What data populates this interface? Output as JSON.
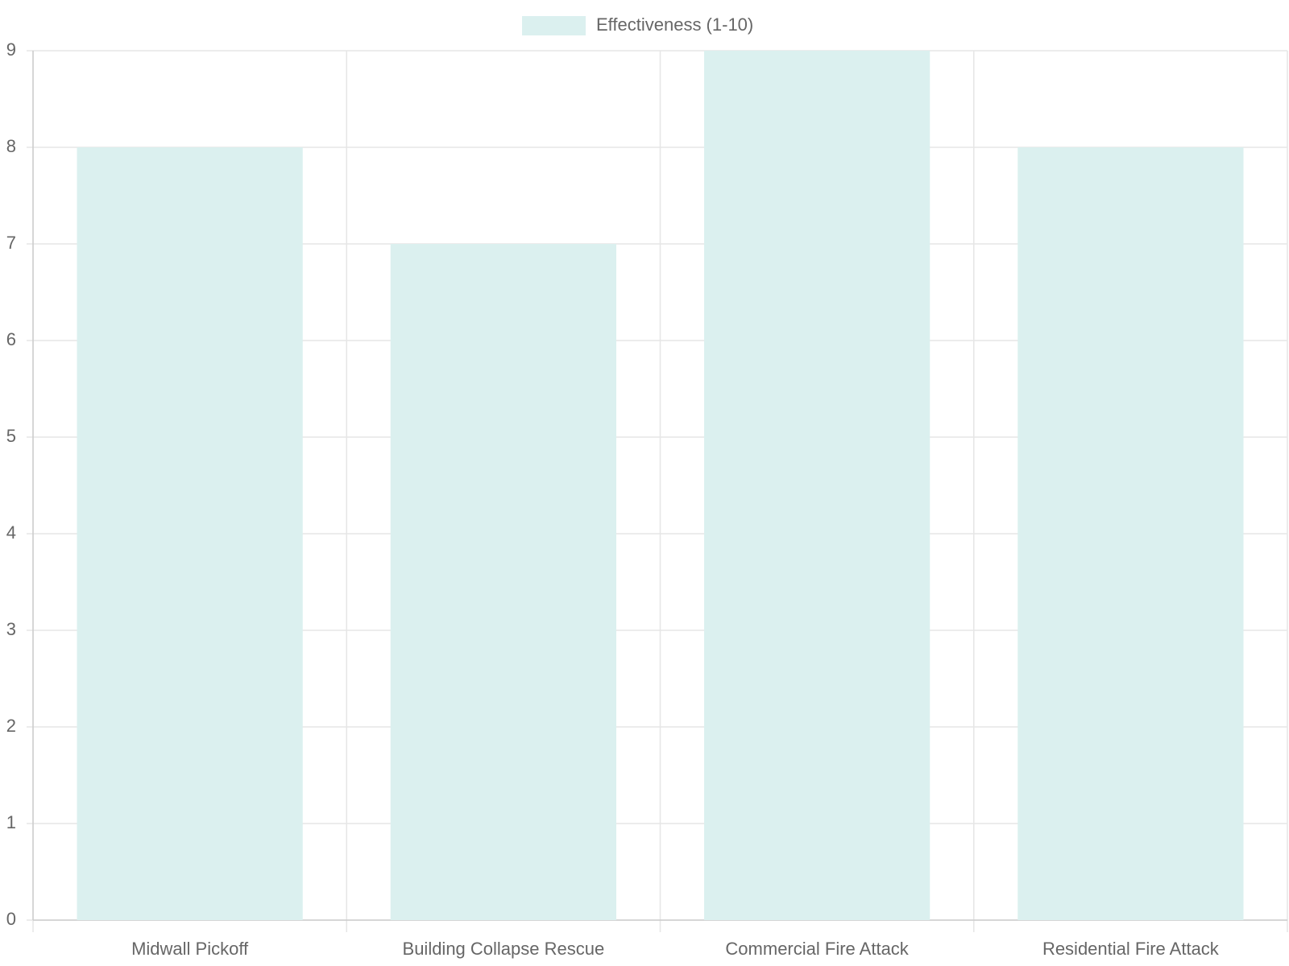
{
  "chart_data": {
    "type": "bar",
    "categories": [
      "Midwall Pickoff",
      "Building Collapse Rescue",
      "Commercial Fire Attack",
      "Residential Fire Attack"
    ],
    "series": [
      {
        "name": "Effectiveness (1-10)",
        "color": "#dbf0ef",
        "values": [
          8,
          7,
          9,
          8
        ]
      }
    ],
    "ylim": [
      0,
      9
    ],
    "yticks": [
      0,
      1,
      2,
      3,
      4,
      5,
      6,
      7,
      8,
      9
    ],
    "grid": true,
    "legend": "top"
  }
}
